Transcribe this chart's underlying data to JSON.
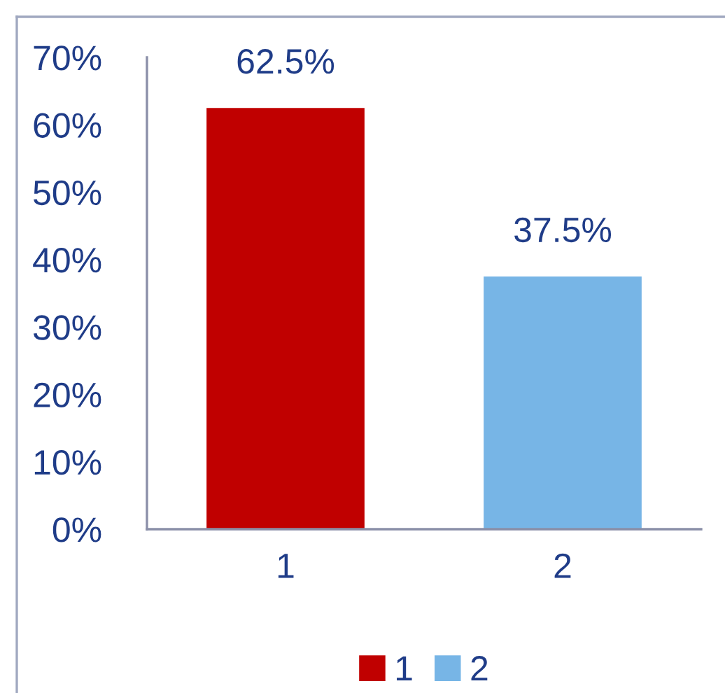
{
  "chart_data": {
    "type": "bar",
    "categories": [
      "1",
      "2"
    ],
    "series": [
      {
        "name": "1",
        "color": "#c00000",
        "values": [
          62.5,
          null
        ],
        "value_labels": [
          "62.5%",
          null
        ]
      },
      {
        "name": "2",
        "color": "#77b5e6",
        "values": [
          null,
          37.5
        ],
        "value_labels": [
          null,
          "37.5%"
        ]
      }
    ],
    "ylim": [
      0,
      70
    ],
    "yticks": [
      {
        "value": 0,
        "label": "0%"
      },
      {
        "value": 10,
        "label": "10%"
      },
      {
        "value": 20,
        "label": "20%"
      },
      {
        "value": 30,
        "label": "30%"
      },
      {
        "value": 40,
        "label": "40%"
      },
      {
        "value": 50,
        "label": "50%"
      },
      {
        "value": 60,
        "label": "60%"
      },
      {
        "value": 70,
        "label": "70%"
      }
    ],
    "legend": "bottom"
  }
}
